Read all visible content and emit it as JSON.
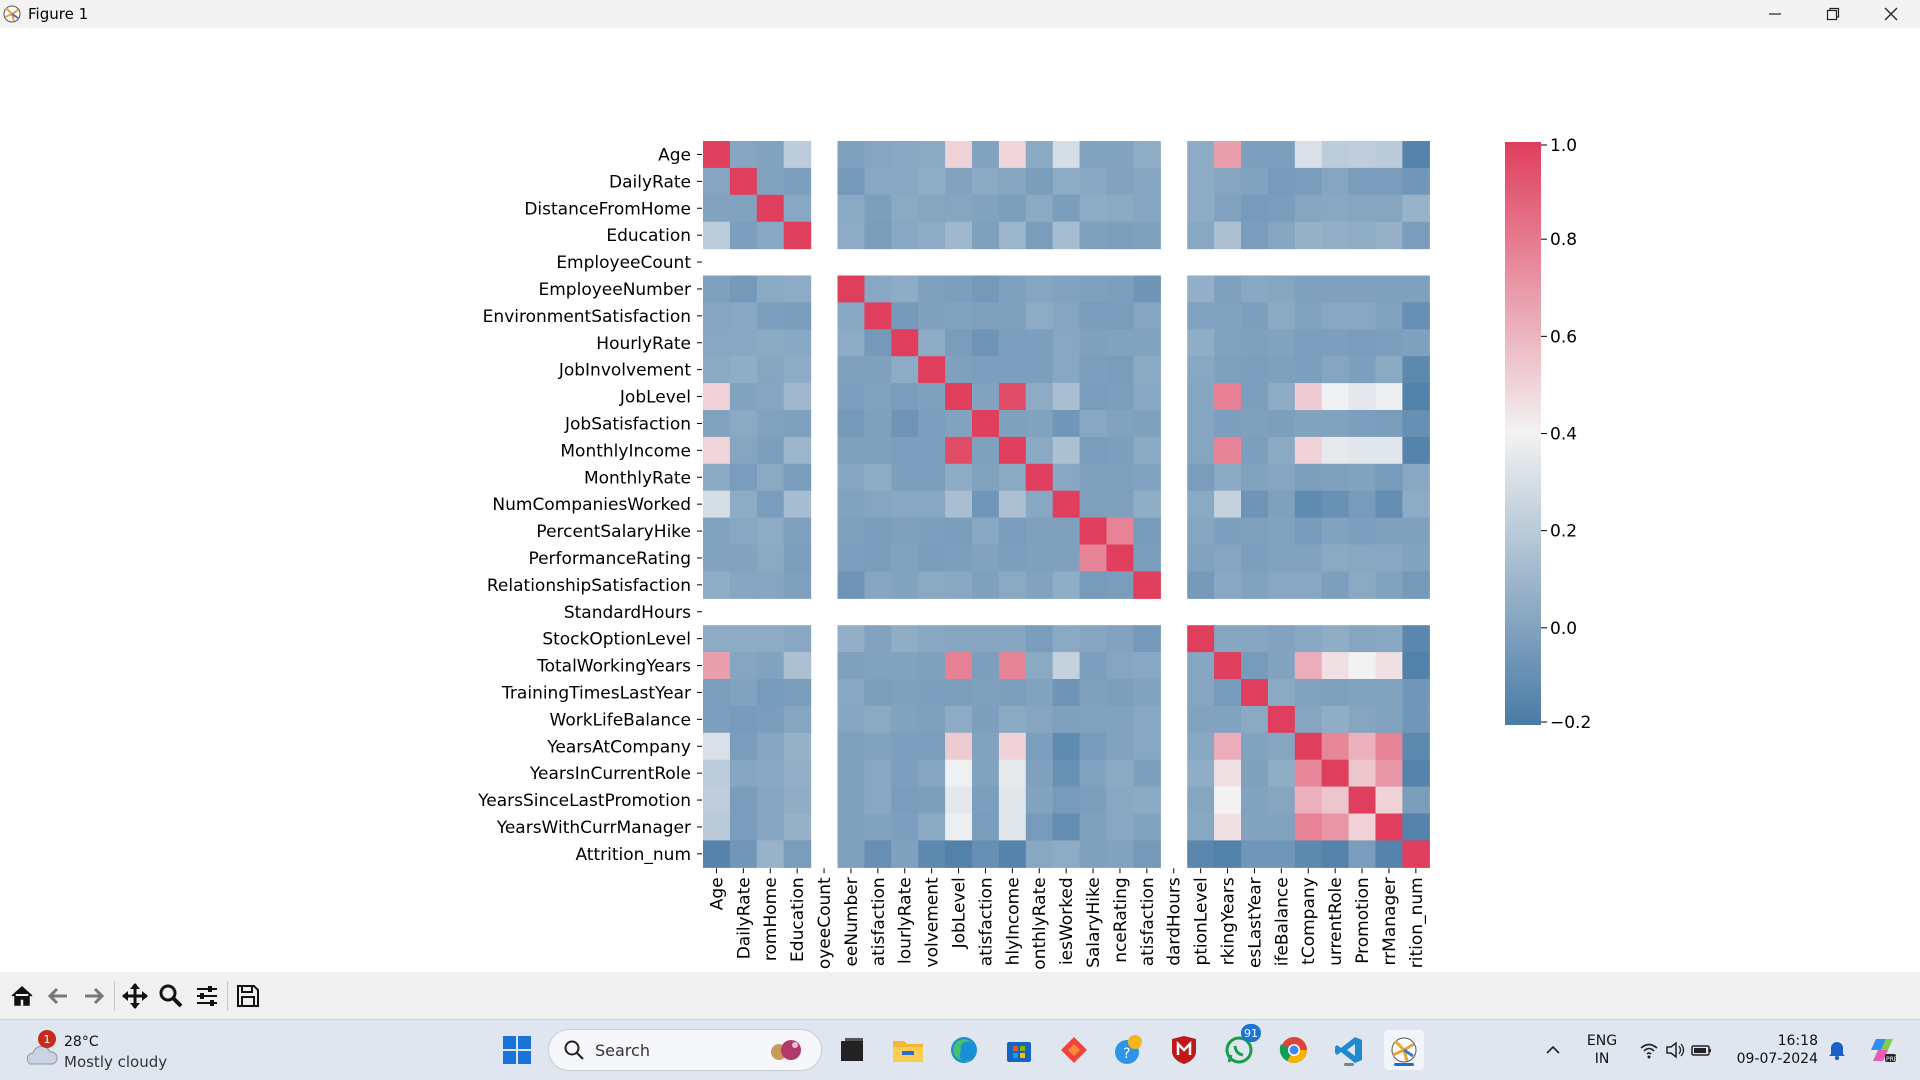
{
  "window": {
    "title": "Figure 1"
  },
  "toolbar": {
    "buttons": [
      "home-icon",
      "back-icon",
      "forward-icon",
      "pan-icon",
      "zoom-icon",
      "configure-subplots-icon",
      "save-icon"
    ]
  },
  "chart_data": {
    "type": "heatmap",
    "title": "",
    "xlabel": "",
    "ylabel": "",
    "labels": [
      "Age",
      "DailyRate",
      "DistanceFromHome",
      "Education",
      "EmployeeCount",
      "EmployeeNumber",
      "EnvironmentSatisfaction",
      "HourlyRate",
      "JobInvolvement",
      "JobLevel",
      "JobSatisfaction",
      "MonthlyIncome",
      "MonthlyRate",
      "NumCompaniesWorked",
      "PercentSalaryHike",
      "PerformanceRating",
      "RelationshipSatisfaction",
      "StandardHours",
      "StockOptionLevel",
      "TotalWorkingYears",
      "TrainingTimesLastYear",
      "WorkLifeBalance",
      "YearsAtCompany",
      "YearsInCurrentRole",
      "YearsSinceLastPromotion",
      "YearsWithCurrManager",
      "Attrition_num"
    ],
    "x_tick_labels": [
      "Age",
      "DailyRate",
      "romHome",
      "Education",
      "oyeeCount",
      "eeNumber",
      "atisfaction",
      "lourlyRate",
      "volvement",
      "JobLevel",
      "atisfaction",
      "hlyIncome",
      "onthlyRate",
      "iesWorked",
      "SalaryHike",
      "nceRating",
      "atisfaction",
      "dardHours",
      "ptionLevel",
      "rkingYears",
      "esLastYear",
      "ifeBalance",
      "tCompany",
      "urrentRole",
      "Promotion",
      "rrManager",
      "rition_num"
    ],
    "nan_rows": [
      4,
      17
    ],
    "values": [
      [
        1.0,
        0.01,
        0.0,
        0.21,
        null,
        -0.01,
        0.01,
        0.02,
        0.03,
        0.51,
        0.0,
        0.5,
        0.03,
        0.3,
        0.0,
        0.0,
        0.05,
        null,
        0.04,
        0.68,
        -0.02,
        -0.02,
        0.31,
        0.21,
        0.22,
        0.2,
        -0.16
      ],
      [
        0.01,
        1.0,
        -0.0,
        -0.02,
        null,
        -0.05,
        0.02,
        0.02,
        0.05,
        0.0,
        0.03,
        0.01,
        -0.03,
        0.04,
        0.02,
        0.0,
        0.01,
        null,
        0.04,
        0.01,
        0.0,
        -0.04,
        -0.03,
        0.01,
        -0.03,
        -0.03,
        -0.06
      ],
      [
        0.0,
        -0.0,
        1.0,
        0.02,
        null,
        0.03,
        -0.02,
        0.03,
        0.01,
        0.01,
        -0.0,
        -0.02,
        0.03,
        -0.03,
        0.04,
        0.03,
        0.01,
        null,
        0.04,
        0.0,
        -0.04,
        -0.03,
        0.01,
        0.02,
        0.01,
        0.01,
        0.08
      ],
      [
        0.21,
        -0.02,
        0.02,
        1.0,
        null,
        0.04,
        -0.03,
        0.02,
        0.04,
        0.1,
        -0.01,
        0.09,
        -0.03,
        0.13,
        -0.01,
        -0.02,
        -0.01,
        null,
        0.02,
        0.15,
        -0.03,
        0.01,
        0.07,
        0.06,
        0.05,
        0.07,
        -0.03
      ],
      [
        null,
        null,
        null,
        null,
        null,
        null,
        null,
        null,
        null,
        null,
        null,
        null,
        null,
        null,
        null,
        null,
        null,
        null,
        null,
        null,
        null,
        null,
        null,
        null,
        null,
        null,
        null
      ],
      [
        -0.01,
        -0.05,
        0.03,
        0.04,
        null,
        1.0,
        0.02,
        0.04,
        -0.01,
        -0.02,
        -0.05,
        -0.01,
        0.01,
        -0.0,
        -0.01,
        -0.02,
        -0.07,
        null,
        0.06,
        -0.01,
        0.02,
        0.01,
        -0.01,
        -0.01,
        -0.01,
        -0.01,
        -0.01
      ],
      [
        0.01,
        0.02,
        -0.02,
        -0.03,
        null,
        0.02,
        1.0,
        -0.05,
        -0.01,
        0.0,
        -0.01,
        -0.01,
        0.04,
        0.01,
        -0.03,
        -0.03,
        0.01,
        null,
        0.0,
        -0.0,
        -0.02,
        0.03,
        0.0,
        0.02,
        0.02,
        -0.0,
        -0.1
      ],
      [
        0.02,
        0.02,
        0.03,
        0.02,
        null,
        0.04,
        -0.05,
        1.0,
        0.04,
        -0.03,
        -0.07,
        -0.02,
        -0.02,
        0.02,
        -0.01,
        -0.0,
        0.0,
        null,
        0.05,
        -0.0,
        -0.01,
        -0.0,
        -0.02,
        -0.02,
        -0.03,
        -0.02,
        -0.01
      ],
      [
        0.03,
        0.05,
        0.01,
        0.04,
        null,
        -0.01,
        -0.01,
        0.04,
        1.0,
        -0.01,
        -0.02,
        -0.02,
        -0.02,
        0.02,
        -0.02,
        -0.03,
        0.03,
        null,
        0.02,
        -0.01,
        -0.02,
        -0.01,
        -0.02,
        0.01,
        -0.02,
        0.03,
        -0.13
      ],
      [
        0.51,
        0.0,
        0.01,
        0.1,
        null,
        -0.02,
        0.0,
        -0.03,
        -0.01,
        1.0,
        -0.0,
        0.95,
        0.04,
        0.14,
        -0.03,
        -0.02,
        0.02,
        null,
        0.01,
        0.78,
        -0.02,
        0.04,
        0.53,
        0.39,
        0.35,
        0.38,
        -0.17
      ],
      [
        0.0,
        0.03,
        -0.0,
        -0.01,
        null,
        -0.05,
        -0.01,
        -0.07,
        -0.02,
        -0.0,
        1.0,
        -0.01,
        0.0,
        -0.06,
        0.02,
        0.0,
        -0.01,
        null,
        0.01,
        -0.02,
        -0.01,
        -0.02,
        -0.0,
        -0.0,
        -0.02,
        -0.03,
        -0.1
      ],
      [
        0.5,
        0.01,
        -0.02,
        0.09,
        null,
        -0.01,
        -0.01,
        -0.02,
        -0.02,
        0.95,
        -0.01,
        1.0,
        0.03,
        0.15,
        -0.03,
        -0.02,
        0.03,
        null,
        0.01,
        0.77,
        -0.02,
        0.03,
        0.51,
        0.36,
        0.34,
        0.34,
        -0.16
      ],
      [
        0.03,
        -0.03,
        0.03,
        -0.03,
        null,
        0.01,
        0.04,
        -0.02,
        -0.02,
        0.04,
        0.0,
        0.03,
        1.0,
        0.02,
        -0.01,
        -0.01,
        -0.0,
        null,
        -0.03,
        0.03,
        0.0,
        0.01,
        -0.02,
        -0.01,
        0.0,
        -0.04,
        0.02
      ],
      [
        0.3,
        0.04,
        -0.03,
        0.13,
        null,
        -0.0,
        0.01,
        0.02,
        0.02,
        0.14,
        -0.06,
        0.15,
        0.02,
        1.0,
        -0.01,
        -0.01,
        0.05,
        null,
        0.03,
        0.24,
        -0.07,
        -0.01,
        -0.12,
        -0.09,
        -0.04,
        -0.11,
        0.04
      ],
      [
        0.0,
        0.02,
        0.04,
        -0.01,
        null,
        -0.01,
        -0.03,
        -0.01,
        -0.02,
        -0.03,
        0.02,
        -0.03,
        -0.01,
        -0.01,
        1.0,
        0.77,
        -0.04,
        null,
        0.01,
        -0.02,
        -0.01,
        -0.0,
        -0.04,
        -0.0,
        -0.02,
        -0.01,
        -0.01
      ],
      [
        0.0,
        0.0,
        0.03,
        -0.02,
        null,
        -0.02,
        -0.03,
        -0.0,
        -0.03,
        -0.02,
        0.0,
        -0.02,
        -0.01,
        -0.01,
        0.77,
        1.0,
        -0.03,
        null,
        -0.0,
        0.01,
        -0.02,
        0.0,
        0.0,
        0.03,
        0.02,
        0.02,
        0.0
      ],
      [
        0.05,
        0.01,
        0.01,
        -0.01,
        null,
        -0.07,
        0.01,
        0.0,
        0.03,
        0.02,
        -0.01,
        0.03,
        -0.0,
        0.05,
        -0.04,
        -0.03,
        1.0,
        null,
        -0.05,
        0.02,
        0.0,
        0.02,
        0.02,
        -0.02,
        0.03,
        -0.0,
        -0.05
      ],
      [
        null,
        null,
        null,
        null,
        null,
        null,
        null,
        null,
        null,
        null,
        null,
        null,
        null,
        null,
        null,
        null,
        null,
        null,
        null,
        null,
        null,
        null,
        null,
        null,
        null,
        null,
        null
      ],
      [
        0.04,
        0.04,
        0.04,
        0.02,
        null,
        0.06,
        0.0,
        0.05,
        0.02,
        0.01,
        0.01,
        0.01,
        -0.03,
        0.03,
        0.01,
        -0.0,
        -0.05,
        null,
        1.0,
        0.01,
        0.01,
        0.0,
        0.02,
        0.05,
        0.01,
        0.02,
        -0.14
      ],
      [
        0.68,
        0.01,
        0.0,
        0.15,
        null,
        -0.01,
        -0.0,
        -0.0,
        -0.01,
        0.78,
        -0.02,
        0.77,
        0.03,
        0.24,
        -0.02,
        0.01,
        0.02,
        null,
        0.01,
        1.0,
        -0.04,
        0.0,
        0.63,
        0.46,
        0.4,
        0.46,
        -0.17
      ],
      [
        -0.02,
        0.0,
        -0.04,
        -0.03,
        null,
        0.02,
        -0.02,
        -0.01,
        -0.02,
        -0.02,
        -0.01,
        -0.02,
        0.0,
        -0.07,
        -0.01,
        -0.02,
        0.0,
        null,
        0.01,
        -0.04,
        1.0,
        0.03,
        0.0,
        -0.01,
        -0.0,
        -0.0,
        -0.06
      ],
      [
        -0.02,
        -0.04,
        -0.03,
        0.01,
        null,
        0.01,
        0.03,
        -0.0,
        -0.01,
        0.04,
        -0.02,
        0.03,
        0.01,
        -0.01,
        -0.0,
        0.0,
        0.02,
        null,
        0.0,
        0.0,
        0.03,
        1.0,
        0.01,
        0.05,
        0.01,
        0.0,
        -0.06
      ],
      [
        0.31,
        -0.03,
        0.01,
        0.07,
        null,
        -0.01,
        0.0,
        -0.02,
        -0.02,
        0.53,
        -0.0,
        0.51,
        -0.02,
        -0.12,
        -0.04,
        0.0,
        0.02,
        null,
        0.02,
        0.63,
        0.0,
        0.01,
        1.0,
        0.76,
        0.62,
        0.77,
        -0.13
      ],
      [
        0.21,
        0.01,
        0.02,
        0.06,
        null,
        -0.01,
        0.02,
        -0.02,
        0.01,
        0.39,
        -0.0,
        0.36,
        -0.01,
        -0.09,
        -0.0,
        0.03,
        -0.02,
        null,
        0.05,
        0.46,
        -0.01,
        0.05,
        0.76,
        1.0,
        0.55,
        0.71,
        -0.16
      ],
      [
        0.22,
        -0.03,
        0.01,
        0.05,
        null,
        -0.01,
        0.02,
        -0.03,
        -0.02,
        0.35,
        -0.02,
        0.34,
        0.0,
        -0.04,
        -0.02,
        0.02,
        0.03,
        null,
        0.01,
        0.4,
        -0.0,
        0.01,
        0.62,
        0.55,
        1.0,
        0.51,
        -0.03
      ],
      [
        0.2,
        -0.03,
        0.01,
        0.07,
        null,
        -0.01,
        -0.0,
        -0.02,
        0.03,
        0.38,
        -0.03,
        0.34,
        -0.04,
        -0.11,
        -0.01,
        0.02,
        -0.0,
        null,
        0.02,
        0.46,
        -0.0,
        0.0,
        0.77,
        0.71,
        0.51,
        1.0,
        -0.16
      ],
      [
        -0.16,
        -0.06,
        0.08,
        -0.03,
        null,
        -0.01,
        -0.1,
        -0.01,
        -0.13,
        -0.17,
        -0.1,
        -0.16,
        0.02,
        0.04,
        -0.01,
        0.0,
        -0.05,
        null,
        -0.14,
        -0.17,
        -0.06,
        -0.06,
        -0.13,
        -0.16,
        -0.03,
        -0.16,
        1.0
      ]
    ],
    "colorbar": {
      "min": -0.2,
      "max": 1.0,
      "ticks": [
        "1.0",
        "0.8",
        "0.6",
        "0.4",
        "0.2",
        "0.0",
        "−0.2"
      ],
      "low_color": "#4a7ba6",
      "mid_color": "#f2f2f2",
      "high_color": "#df3e5d"
    }
  },
  "taskbar": {
    "weather": {
      "temp": "28°C",
      "condition": "Mostly cloudy",
      "badge": "1"
    },
    "search_label": "Search",
    "whatsapp_badge": "91",
    "lang_top": "ENG",
    "lang_bottom": "IN",
    "time": "16:18",
    "date": "09-07-2024"
  }
}
